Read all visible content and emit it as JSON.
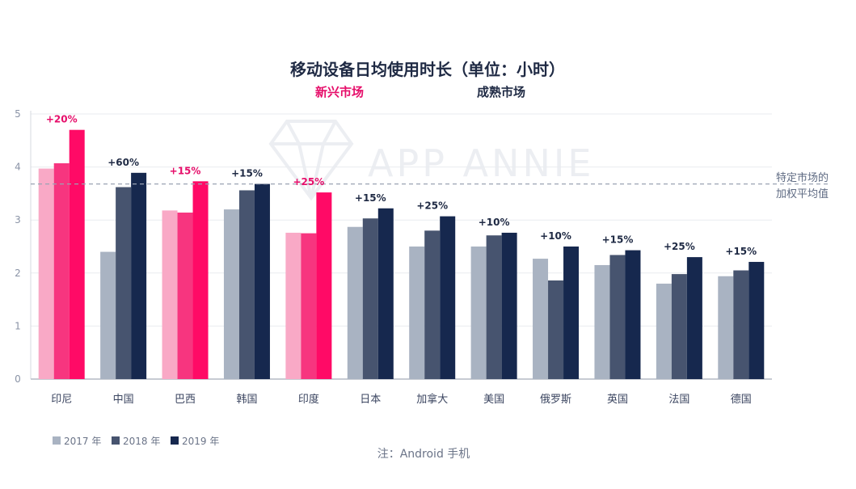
{
  "colors": {
    "emerging": [
      "#f9a9c6",
      "#f7357f",
      "#ff0a66"
    ],
    "mature": [
      "#a9b3c2",
      "#47546f",
      "#16284e"
    ],
    "emerging_label": "#e60e6a",
    "mature_label": "#1f2a44",
    "grid": "#e9ebef",
    "avg_line": "#9aa3b3"
  },
  "watermark": "APP ANNIE",
  "chart_data": {
    "type": "bar",
    "title": "移动设备日均使用时长（单位：小时）",
    "groups": {
      "emerging": "新兴市场",
      "mature": "成熟市场"
    },
    "categories": [
      "印尼",
      "中国",
      "巴西",
      "韩国",
      "印度",
      "日本",
      "加拿大",
      "美国",
      "俄罗斯",
      "英国",
      "法国",
      "德国"
    ],
    "market_type": [
      "emerging",
      "mature",
      "emerging",
      "mature",
      "emerging",
      "mature",
      "mature",
      "mature",
      "mature",
      "mature",
      "mature",
      "mature"
    ],
    "series": [
      {
        "name": "2017 年",
        "values": [
          3.97,
          2.4,
          3.18,
          3.2,
          2.76,
          2.87,
          2.5,
          2.5,
          2.27,
          2.15,
          1.8,
          1.94
        ]
      },
      {
        "name": "2018 年",
        "values": [
          4.07,
          3.62,
          3.14,
          3.56,
          2.75,
          3.03,
          2.8,
          2.71,
          1.86,
          2.34,
          1.98,
          2.05
        ]
      },
      {
        "name": "2019 年",
        "values": [
          4.7,
          3.89,
          3.73,
          3.68,
          3.52,
          3.22,
          3.07,
          2.76,
          2.5,
          2.43,
          2.3,
          2.21
        ]
      }
    ],
    "growth_labels": [
      "+20%",
      "+60%",
      "+15%",
      "+15%",
      "+25%",
      "+15%",
      "+25%",
      "+10%",
      "+10%",
      "+15%",
      "+25%",
      "+15%"
    ],
    "ylim": [
      0,
      5
    ],
    "yticks": [
      0,
      1,
      2,
      3,
      4,
      5
    ],
    "weighted_average": 3.68,
    "average_label_line1": "特定市场的",
    "average_label_line2": "加权平均值",
    "grid": true,
    "legend_position": "bottom-left"
  },
  "note": "注：Android 手机"
}
